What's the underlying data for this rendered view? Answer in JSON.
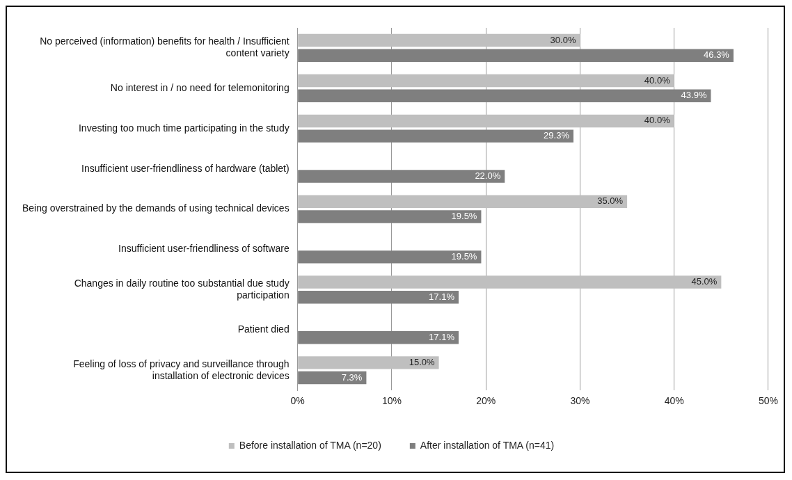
{
  "chart_data": {
    "type": "bar",
    "orientation": "horizontal",
    "categories": [
      "No perceived (information) benefits for health / Insufficient content variety",
      "No interest in / no need for telemonitoring",
      "Investing too much time participating in the study",
      "Insufficient user-friendliness of hardware (tablet)",
      "Being overstrained by the demands of using technical devices",
      "Insufficient user-friendliness of software",
      "Changes in daily routine too substantial due study participation",
      "Patient died",
      "Feeling of loss of privacy and surveillance through installation of electronic devices"
    ],
    "series": [
      {
        "name": "Before installation of TMA (n=20)",
        "color": "#bfbfbf",
        "values": [
          30,
          40,
          40,
          null,
          35,
          null,
          45,
          null,
          15
        ],
        "value_labels": [
          "30.0%",
          "40.0%",
          "40.0%",
          null,
          "35.0%",
          null,
          "45.0%",
          null,
          "15.0%"
        ]
      },
      {
        "name": "After installation of TMA (n=41)",
        "color": "#7f7f7f",
        "values": [
          46.3,
          43.9,
          29.3,
          22,
          19.5,
          19.5,
          17.1,
          17.1,
          7.3
        ],
        "value_labels": [
          "46.3%",
          "43.9%",
          "29.3%",
          "22.0%",
          "19.5%",
          "19.5%",
          "17.1%",
          "17.1%",
          "7.3%"
        ]
      }
    ],
    "xlim": [
      0,
      50
    ],
    "xticks": [
      {
        "value": 0,
        "label": "0%"
      },
      {
        "value": 10,
        "label": "10%"
      },
      {
        "value": 20,
        "label": "20%"
      },
      {
        "value": 30,
        "label": "30%"
      },
      {
        "value": 40,
        "label": "40%"
      },
      {
        "value": 50,
        "label": "50%"
      }
    ],
    "grid": "x",
    "legend": "bottom"
  }
}
